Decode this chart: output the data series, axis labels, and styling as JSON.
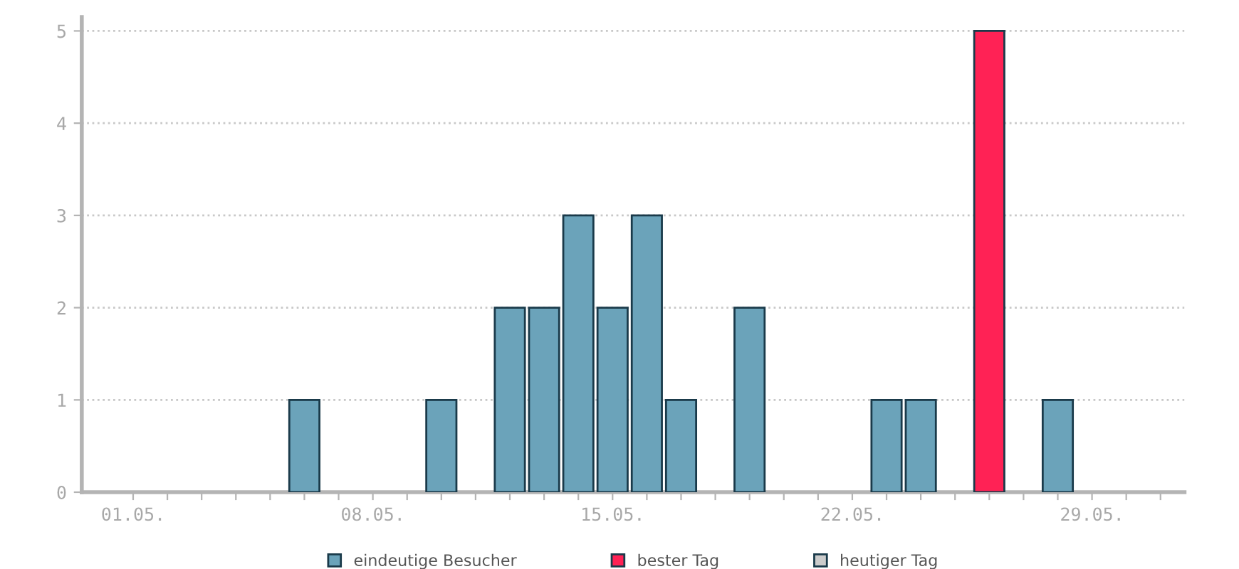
{
  "chart_data": {
    "type": "bar",
    "categories": [
      "01.05.",
      null,
      null,
      null,
      null,
      null,
      null,
      "08.05.",
      null,
      null,
      null,
      null,
      null,
      null,
      "15.05.",
      null,
      null,
      null,
      null,
      null,
      null,
      "22.05.",
      null,
      null,
      null,
      null,
      null,
      null,
      "29.05.",
      null,
      null
    ],
    "series": [
      {
        "name": "eindeutige Besucher",
        "color": "#6ba3ba",
        "values": [
          0,
          0,
          0,
          0,
          0,
          1,
          0,
          0,
          0,
          1,
          0,
          2,
          2,
          3,
          2,
          3,
          1,
          0,
          2,
          0,
          0,
          0,
          1,
          1,
          0,
          null,
          0,
          1,
          0,
          0,
          0
        ]
      },
      {
        "name": "bester Tag",
        "color": "#ff2255",
        "values": [
          null,
          null,
          null,
          null,
          null,
          null,
          null,
          null,
          null,
          null,
          null,
          null,
          null,
          null,
          null,
          null,
          null,
          null,
          null,
          null,
          null,
          null,
          null,
          null,
          null,
          5,
          null,
          null,
          null,
          null,
          null
        ]
      },
      {
        "name": "heutiger Tag",
        "color": "#cccccc",
        "values": [
          null,
          null,
          null,
          null,
          null,
          null,
          null,
          null,
          null,
          null,
          null,
          null,
          null,
          null,
          null,
          null,
          null,
          null,
          null,
          null,
          null,
          null,
          null,
          null,
          null,
          null,
          null,
          null,
          null,
          null,
          null
        ]
      }
    ],
    "ylim": [
      0,
      5.15
    ],
    "yticks": [
      0,
      1,
      2,
      3,
      4,
      5
    ],
    "grid": "y",
    "legend": "bottom"
  }
}
